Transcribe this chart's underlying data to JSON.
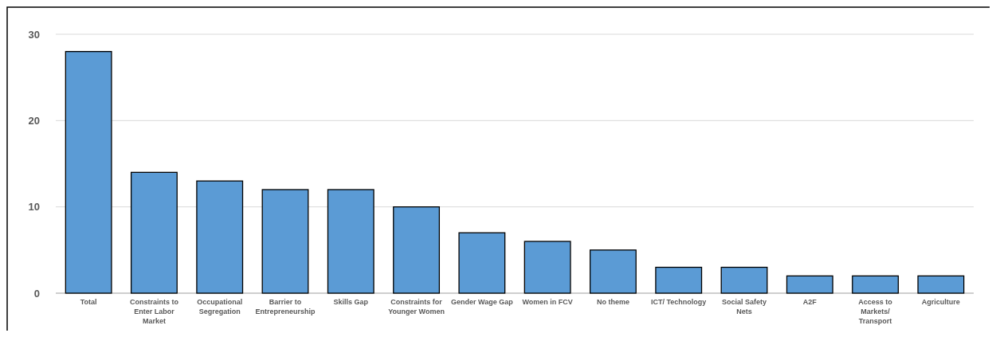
{
  "chart_data": {
    "type": "bar",
    "categories": [
      "Total",
      "Constraints to Enter Labor Market",
      "Occupational Segregation",
      "Barrier to Entrepreneurship",
      "Skills Gap",
      "Constraints for Younger Women",
      "Gender Wage Gap",
      "Women in FCV",
      "No theme",
      "ICT/ Technology",
      "Social Safety Nets",
      "A2F",
      "Access to Markets/ Transport",
      "Agriculture"
    ],
    "values": [
      28,
      14,
      13,
      12,
      12,
      10,
      7,
      6,
      5,
      3,
      3,
      2,
      2,
      2
    ],
    "color": "#5b9bd5",
    "ylim": [
      0,
      30
    ],
    "yticks": [
      0,
      10,
      20,
      30
    ],
    "grid": "y"
  }
}
